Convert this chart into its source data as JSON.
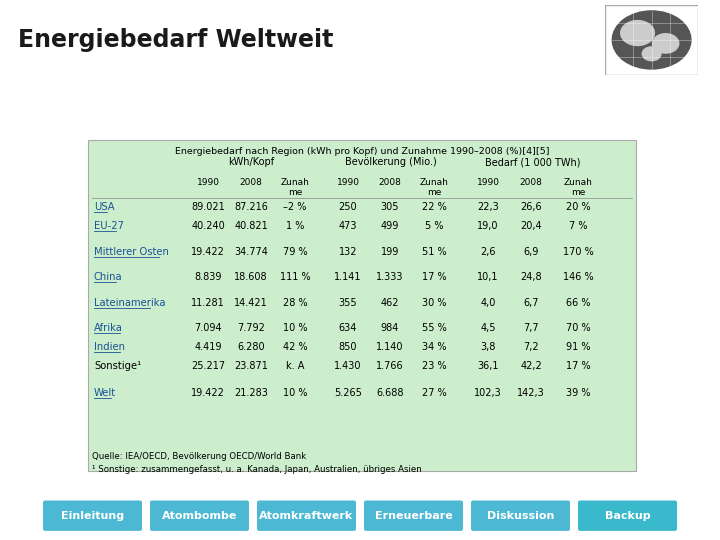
{
  "title": "Energiebedarf Weltweit",
  "title_bg": "#87CEEB",
  "page_bg": "#FFFFFF",
  "table_title": "Energiebedarf nach Region (kWh pro Kopf) und Zunahme 1990–2008 (%)[4][5]",
  "table_bg": "#CCEECC",
  "col_groups": [
    "kWh/Kopf",
    "Bevölkerung (Mio.)",
    "Bedarf (1 000 TWh)"
  ],
  "rows": [
    {
      "name": "USA",
      "link": true,
      "values": [
        "89.021",
        "87.216",
        "–2 %",
        "250",
        "305",
        "22 %",
        "22,3",
        "26,6",
        "20 %"
      ]
    },
    {
      "name": "EU-27",
      "link": true,
      "values": [
        "40.240",
        "40.821",
        "1 %",
        "473",
        "499",
        "5 %",
        "19,0",
        "20,4",
        "7 %"
      ]
    },
    {
      "name": "",
      "link": false,
      "values": [
        "",
        "",
        "",
        "",
        "",
        "",
        "",
        "",
        ""
      ]
    },
    {
      "name": "Mittlerer Osten",
      "link": true,
      "values": [
        "19.422",
        "34.774",
        "79 %",
        "132",
        "199",
        "51 %",
        "2,6",
        "6,9",
        "170 %"
      ]
    },
    {
      "name": "",
      "link": false,
      "values": [
        "",
        "",
        "",
        "",
        "",
        "",
        "",
        "",
        ""
      ]
    },
    {
      "name": "China",
      "link": true,
      "values": [
        "8.839",
        "18.608",
        "111 %",
        "1.141",
        "1.333",
        "17 %",
        "10,1",
        "24,8",
        "146 %"
      ]
    },
    {
      "name": "",
      "link": false,
      "values": [
        "",
        "",
        "",
        "",
        "",
        "",
        "",
        "",
        ""
      ]
    },
    {
      "name": "Lateinamerika",
      "link": true,
      "values": [
        "11.281",
        "14.421",
        "28 %",
        "355",
        "462",
        "30 %",
        "4,0",
        "6,7",
        "66 %"
      ]
    },
    {
      "name": "",
      "link": false,
      "values": [
        "",
        "",
        "",
        "",
        "",
        "",
        "",
        "",
        ""
      ]
    },
    {
      "name": "Afrika",
      "link": true,
      "values": [
        "7.094",
        "7.792",
        "10 %",
        "634",
        "984",
        "55 %",
        "4,5",
        "7,7",
        "70 %"
      ]
    },
    {
      "name": "Indien",
      "link": true,
      "values": [
        "4.419",
        "6.280",
        "42 %",
        "850",
        "1.140",
        "34 %",
        "3,8",
        "7,2",
        "91 %"
      ]
    },
    {
      "name": "Sonstige¹",
      "link": false,
      "values": [
        "25.217",
        "23.871",
        "k. A",
        "1.430",
        "1.766",
        "23 %",
        "36,1",
        "42,2",
        "17 %"
      ]
    },
    {
      "name": "",
      "link": false,
      "values": [
        "",
        "",
        "",
        "",
        "",
        "",
        "",
        "",
        ""
      ]
    },
    {
      "name": "Welt",
      "link": true,
      "values": [
        "19.422",
        "21.283",
        "10 %",
        "5.265",
        "6.688",
        "27 %",
        "102,3",
        "142,3",
        "39 %"
      ]
    }
  ],
  "footnote1": "Quelle: IEA/OECD, Bevölkerung OECD/World Bank",
  "footnote2": "¹ Sonstige: zusammengefasst, u. a. Kanada, Japan, Australien, übriges Asien",
  "nav_buttons": [
    "Einleitung",
    "Atombombe",
    "Atomkraftwerk",
    "Erneuerbare",
    "Diskussion",
    "Backup"
  ],
  "nav_btn_color": "#4DB8D4",
  "link_color": "#1A5296"
}
